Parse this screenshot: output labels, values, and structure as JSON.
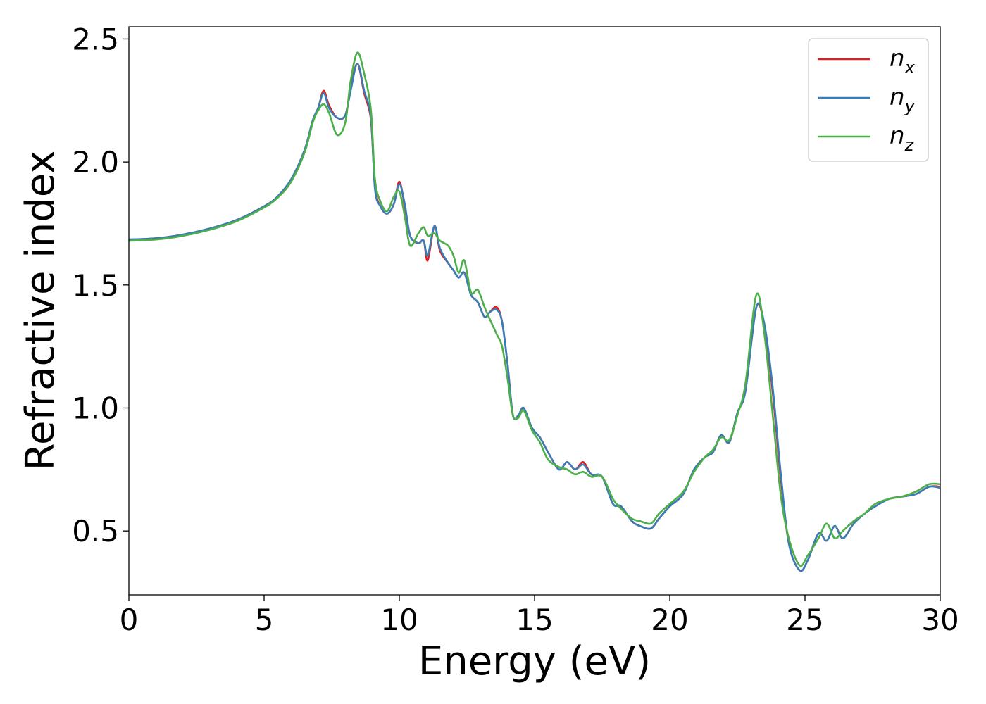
{
  "chart_data": {
    "type": "line",
    "xlabel": "Energy (eV)",
    "ylabel": "Refractive index",
    "xlim": [
      0,
      30
    ],
    "ylim": [
      0.24,
      2.55
    ],
    "xticks": [
      0,
      5,
      10,
      15,
      20,
      25,
      30
    ],
    "xtick_labels": [
      "0",
      "5",
      "10",
      "15",
      "20",
      "25",
      "30"
    ],
    "yticks": [
      0.5,
      1.0,
      1.5,
      2.0,
      2.5
    ],
    "ytick_labels": [
      "0.5",
      "1.0",
      "1.5",
      "2.0",
      "2.5"
    ],
    "grid": false,
    "legend_position": "top-right",
    "series": [
      {
        "name": "n",
        "subscript": "x",
        "color": "#e41a1c",
        "points": [
          [
            0,
            1.685
          ],
          [
            1,
            1.69
          ],
          [
            2,
            1.705
          ],
          [
            3,
            1.73
          ],
          [
            4,
            1.765
          ],
          [
            5,
            1.82
          ],
          [
            5.5,
            1.86
          ],
          [
            6,
            1.93
          ],
          [
            6.5,
            2.05
          ],
          [
            6.8,
            2.17
          ],
          [
            7.0,
            2.22
          ],
          [
            7.2,
            2.29
          ],
          [
            7.4,
            2.23
          ],
          [
            7.7,
            2.18
          ],
          [
            8.0,
            2.19
          ],
          [
            8.2,
            2.3
          ],
          [
            8.45,
            2.4
          ],
          [
            8.7,
            2.28
          ],
          [
            8.95,
            2.17
          ],
          [
            9.1,
            1.9
          ],
          [
            9.3,
            1.82
          ],
          [
            9.55,
            1.79
          ],
          [
            9.8,
            1.83
          ],
          [
            10.0,
            1.92
          ],
          [
            10.2,
            1.82
          ],
          [
            10.4,
            1.7
          ],
          [
            10.7,
            1.67
          ],
          [
            10.9,
            1.68
          ],
          [
            11.05,
            1.6
          ],
          [
            11.3,
            1.74
          ],
          [
            11.5,
            1.64
          ],
          [
            11.8,
            1.59
          ],
          [
            12.0,
            1.56
          ],
          [
            12.2,
            1.53
          ],
          [
            12.4,
            1.55
          ],
          [
            12.65,
            1.46
          ],
          [
            12.9,
            1.43
          ],
          [
            13.15,
            1.37
          ],
          [
            13.35,
            1.39
          ],
          [
            13.6,
            1.41
          ],
          [
            13.8,
            1.35
          ],
          [
            14.0,
            1.18
          ],
          [
            14.2,
            0.97
          ],
          [
            14.4,
            0.97
          ],
          [
            14.6,
            1.0
          ],
          [
            14.9,
            0.92
          ],
          [
            15.2,
            0.88
          ],
          [
            15.5,
            0.82
          ],
          [
            15.9,
            0.75
          ],
          [
            16.2,
            0.78
          ],
          [
            16.5,
            0.75
          ],
          [
            16.8,
            0.78
          ],
          [
            17.1,
            0.73
          ],
          [
            17.5,
            0.72
          ],
          [
            17.9,
            0.61
          ],
          [
            18.2,
            0.6
          ],
          [
            18.6,
            0.54
          ],
          [
            18.9,
            0.52
          ],
          [
            19.3,
            0.51
          ],
          [
            19.6,
            0.55
          ],
          [
            20.0,
            0.6
          ],
          [
            20.5,
            0.65
          ],
          [
            20.9,
            0.75
          ],
          [
            21.3,
            0.8
          ],
          [
            21.6,
            0.82
          ],
          [
            21.9,
            0.89
          ],
          [
            22.2,
            0.86
          ],
          [
            22.5,
            0.98
          ],
          [
            22.8,
            1.07
          ],
          [
            23.2,
            1.41
          ],
          [
            23.5,
            1.33
          ],
          [
            23.8,
            1.07
          ],
          [
            24.1,
            0.72
          ],
          [
            24.4,
            0.45
          ],
          [
            24.8,
            0.34
          ],
          [
            25.1,
            0.38
          ],
          [
            25.5,
            0.49
          ],
          [
            25.8,
            0.46
          ],
          [
            26.1,
            0.52
          ],
          [
            26.4,
            0.47
          ],
          [
            26.8,
            0.53
          ],
          [
            27.2,
            0.57
          ],
          [
            27.6,
            0.6
          ],
          [
            28.1,
            0.63
          ],
          [
            28.6,
            0.64
          ],
          [
            29.1,
            0.65
          ],
          [
            29.6,
            0.68
          ],
          [
            30,
            0.68
          ]
        ]
      },
      {
        "name": "n",
        "subscript": "y",
        "color": "#377eb8",
        "points": [
          [
            0,
            1.685
          ],
          [
            1,
            1.69
          ],
          [
            2,
            1.705
          ],
          [
            3,
            1.73
          ],
          [
            4,
            1.765
          ],
          [
            5,
            1.82
          ],
          [
            5.5,
            1.86
          ],
          [
            6,
            1.93
          ],
          [
            6.5,
            2.05
          ],
          [
            6.8,
            2.17
          ],
          [
            7.0,
            2.22
          ],
          [
            7.2,
            2.28
          ],
          [
            7.4,
            2.22
          ],
          [
            7.7,
            2.18
          ],
          [
            8.0,
            2.19
          ],
          [
            8.2,
            2.29
          ],
          [
            8.45,
            2.4
          ],
          [
            8.7,
            2.29
          ],
          [
            8.95,
            2.18
          ],
          [
            9.1,
            1.89
          ],
          [
            9.3,
            1.82
          ],
          [
            9.55,
            1.79
          ],
          [
            9.8,
            1.83
          ],
          [
            10.0,
            1.91
          ],
          [
            10.2,
            1.83
          ],
          [
            10.4,
            1.7
          ],
          [
            10.7,
            1.67
          ],
          [
            10.9,
            1.68
          ],
          [
            11.05,
            1.62
          ],
          [
            11.3,
            1.74
          ],
          [
            11.5,
            1.65
          ],
          [
            11.8,
            1.59
          ],
          [
            12.0,
            1.56
          ],
          [
            12.2,
            1.53
          ],
          [
            12.4,
            1.55
          ],
          [
            12.65,
            1.46
          ],
          [
            12.9,
            1.43
          ],
          [
            13.15,
            1.37
          ],
          [
            13.35,
            1.39
          ],
          [
            13.6,
            1.4
          ],
          [
            13.8,
            1.35
          ],
          [
            14.0,
            1.18
          ],
          [
            14.2,
            0.97
          ],
          [
            14.4,
            0.97
          ],
          [
            14.6,
            1.0
          ],
          [
            14.9,
            0.92
          ],
          [
            15.2,
            0.88
          ],
          [
            15.5,
            0.82
          ],
          [
            15.9,
            0.75
          ],
          [
            16.2,
            0.78
          ],
          [
            16.5,
            0.75
          ],
          [
            16.8,
            0.77
          ],
          [
            17.1,
            0.73
          ],
          [
            17.5,
            0.72
          ],
          [
            17.9,
            0.61
          ],
          [
            18.2,
            0.6
          ],
          [
            18.6,
            0.54
          ],
          [
            18.9,
            0.52
          ],
          [
            19.3,
            0.51
          ],
          [
            19.6,
            0.55
          ],
          [
            20.0,
            0.6
          ],
          [
            20.5,
            0.65
          ],
          [
            20.9,
            0.75
          ],
          [
            21.3,
            0.8
          ],
          [
            21.6,
            0.82
          ],
          [
            21.9,
            0.89
          ],
          [
            22.2,
            0.86
          ],
          [
            22.5,
            0.98
          ],
          [
            22.8,
            1.07
          ],
          [
            23.2,
            1.41
          ],
          [
            23.5,
            1.34
          ],
          [
            23.8,
            1.09
          ],
          [
            24.1,
            0.74
          ],
          [
            24.4,
            0.45
          ],
          [
            24.8,
            0.34
          ],
          [
            25.1,
            0.38
          ],
          [
            25.5,
            0.49
          ],
          [
            25.8,
            0.46
          ],
          [
            26.1,
            0.52
          ],
          [
            26.4,
            0.47
          ],
          [
            26.8,
            0.53
          ],
          [
            27.2,
            0.57
          ],
          [
            27.6,
            0.6
          ],
          [
            28.1,
            0.63
          ],
          [
            28.6,
            0.64
          ],
          [
            29.1,
            0.65
          ],
          [
            29.6,
            0.68
          ],
          [
            30,
            0.675
          ]
        ]
      },
      {
        "name": "n",
        "subscript": "z",
        "color": "#4daf4a",
        "points": [
          [
            0,
            1.68
          ],
          [
            1,
            1.685
          ],
          [
            2,
            1.7
          ],
          [
            3,
            1.725
          ],
          [
            4,
            1.76
          ],
          [
            5,
            1.815
          ],
          [
            5.5,
            1.855
          ],
          [
            6,
            1.92
          ],
          [
            6.5,
            2.04
          ],
          [
            6.8,
            2.16
          ],
          [
            7.0,
            2.21
          ],
          [
            7.2,
            2.235
          ],
          [
            7.4,
            2.2
          ],
          [
            7.7,
            2.11
          ],
          [
            8.0,
            2.16
          ],
          [
            8.2,
            2.33
          ],
          [
            8.45,
            2.445
          ],
          [
            8.7,
            2.36
          ],
          [
            8.95,
            2.21
          ],
          [
            9.1,
            1.93
          ],
          [
            9.3,
            1.84
          ],
          [
            9.55,
            1.8
          ],
          [
            9.8,
            1.86
          ],
          [
            10.0,
            1.88
          ],
          [
            10.2,
            1.78
          ],
          [
            10.4,
            1.66
          ],
          [
            10.7,
            1.71
          ],
          [
            10.9,
            1.735
          ],
          [
            11.05,
            1.7
          ],
          [
            11.3,
            1.71
          ],
          [
            11.5,
            1.68
          ],
          [
            11.8,
            1.66
          ],
          [
            12.0,
            1.62
          ],
          [
            12.2,
            1.55
          ],
          [
            12.4,
            1.6
          ],
          [
            12.65,
            1.47
          ],
          [
            12.9,
            1.48
          ],
          [
            13.15,
            1.41
          ],
          [
            13.35,
            1.36
          ],
          [
            13.6,
            1.3
          ],
          [
            13.8,
            1.25
          ],
          [
            14.0,
            1.12
          ],
          [
            14.2,
            0.97
          ],
          [
            14.4,
            0.96
          ],
          [
            14.6,
            0.99
          ],
          [
            14.9,
            0.91
          ],
          [
            15.2,
            0.86
          ],
          [
            15.5,
            0.79
          ],
          [
            15.9,
            0.76
          ],
          [
            16.2,
            0.75
          ],
          [
            16.5,
            0.73
          ],
          [
            16.8,
            0.74
          ],
          [
            17.1,
            0.72
          ],
          [
            17.5,
            0.72
          ],
          [
            17.9,
            0.63
          ],
          [
            18.2,
            0.59
          ],
          [
            18.6,
            0.55
          ],
          [
            18.9,
            0.54
          ],
          [
            19.3,
            0.53
          ],
          [
            19.6,
            0.57
          ],
          [
            20.0,
            0.61
          ],
          [
            20.5,
            0.66
          ],
          [
            20.9,
            0.74
          ],
          [
            21.3,
            0.8
          ],
          [
            21.6,
            0.83
          ],
          [
            21.9,
            0.88
          ],
          [
            22.2,
            0.87
          ],
          [
            22.5,
            0.97
          ],
          [
            22.8,
            1.1
          ],
          [
            23.2,
            1.46
          ],
          [
            23.5,
            1.3
          ],
          [
            23.8,
            0.98
          ],
          [
            24.1,
            0.65
          ],
          [
            24.4,
            0.47
          ],
          [
            24.8,
            0.36
          ],
          [
            25.1,
            0.4
          ],
          [
            25.5,
            0.47
          ],
          [
            25.8,
            0.53
          ],
          [
            26.1,
            0.47
          ],
          [
            26.4,
            0.5
          ],
          [
            26.8,
            0.54
          ],
          [
            27.2,
            0.57
          ],
          [
            27.6,
            0.61
          ],
          [
            28.1,
            0.63
          ],
          [
            28.6,
            0.64
          ],
          [
            29.1,
            0.66
          ],
          [
            29.6,
            0.69
          ],
          [
            30,
            0.69
          ]
        ]
      }
    ]
  }
}
